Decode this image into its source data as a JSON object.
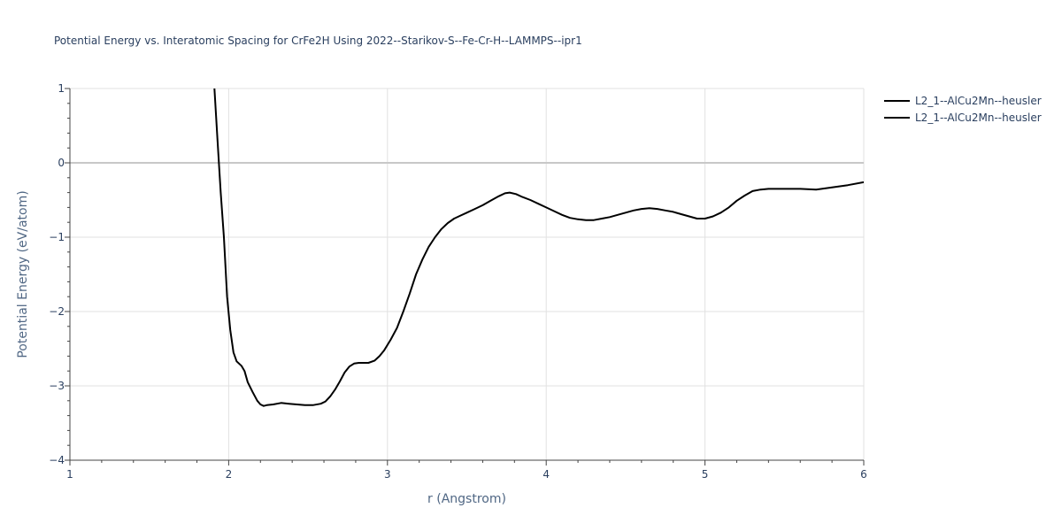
{
  "chart_data": {
    "type": "line",
    "title": "Potential Energy vs. Interatomic Spacing for CrFe2H Using 2022--Starikov-S--Fe-Cr-H--LAMMPS--ipr1",
    "xlabel": "r (Angstrom)",
    "ylabel": "Potential Energy (eV/atom)",
    "xlim": [
      1,
      6
    ],
    "ylim": [
      -4,
      1
    ],
    "x_ticks": [
      "1",
      "2",
      "3",
      "4",
      "5",
      "6"
    ],
    "y_ticks": [
      "1",
      "0",
      "−1",
      "−2",
      "−3",
      "−4"
    ],
    "grid": true,
    "legend_position": "top-right",
    "line_color": "#000000",
    "series": [
      {
        "name": "L2_1--AlCu2Mn--heusler",
        "x": [
          1.91,
          1.93,
          1.95,
          1.97,
          1.99,
          2.01,
          2.03,
          2.05,
          2.08,
          2.1,
          2.12,
          2.15,
          2.18,
          2.2,
          2.22,
          2.24,
          2.28,
          2.33,
          2.38,
          2.43,
          2.48,
          2.53,
          2.58,
          2.61,
          2.64,
          2.67,
          2.7,
          2.73,
          2.76,
          2.79,
          2.82,
          2.85,
          2.88,
          2.92,
          2.95,
          2.98,
          3.02,
          3.06,
          3.1,
          3.14,
          3.18,
          3.22,
          3.26,
          3.3,
          3.34,
          3.38,
          3.42,
          3.46,
          3.5,
          3.55,
          3.6,
          3.65,
          3.7,
          3.74,
          3.77,
          3.81,
          3.85,
          3.9,
          3.95,
          4.0,
          4.05,
          4.1,
          4.15,
          4.2,
          4.25,
          4.3,
          4.35,
          4.4,
          4.45,
          4.5,
          4.55,
          4.6,
          4.65,
          4.7,
          4.75,
          4.8,
          4.85,
          4.9,
          4.95,
          5.0,
          5.05,
          5.1,
          5.15,
          5.2,
          5.25,
          5.3,
          5.35,
          5.4,
          5.45,
          5.5,
          5.6,
          5.7,
          5.8,
          5.9,
          6.0
        ],
        "y": [
          1.0,
          0.3,
          -0.4,
          -1.0,
          -1.8,
          -2.25,
          -2.55,
          -2.67,
          -2.73,
          -2.8,
          -2.95,
          -3.08,
          -3.2,
          -3.25,
          -3.27,
          -3.26,
          -3.25,
          -3.23,
          -3.24,
          -3.25,
          -3.26,
          -3.26,
          -3.24,
          -3.21,
          -3.14,
          -3.05,
          -2.94,
          -2.82,
          -2.74,
          -2.7,
          -2.69,
          -2.69,
          -2.69,
          -2.66,
          -2.6,
          -2.52,
          -2.38,
          -2.22,
          -2.0,
          -1.76,
          -1.5,
          -1.3,
          -1.13,
          -1.0,
          -0.89,
          -0.81,
          -0.75,
          -0.71,
          -0.67,
          -0.62,
          -0.57,
          -0.51,
          -0.45,
          -0.41,
          -0.4,
          -0.42,
          -0.46,
          -0.5,
          -0.55,
          -0.6,
          -0.65,
          -0.7,
          -0.74,
          -0.76,
          -0.77,
          -0.77,
          -0.75,
          -0.73,
          -0.7,
          -0.67,
          -0.64,
          -0.62,
          -0.61,
          -0.62,
          -0.64,
          -0.66,
          -0.69,
          -0.72,
          -0.75,
          -0.75,
          -0.72,
          -0.67,
          -0.6,
          -0.51,
          -0.44,
          -0.38,
          -0.36,
          -0.35,
          -0.35,
          -0.35,
          -0.35,
          -0.36,
          -0.33,
          -0.3,
          -0.26
        ]
      },
      {
        "name": "L2_1--AlCu2Mn--heusler",
        "x": [],
        "y": []
      }
    ]
  }
}
